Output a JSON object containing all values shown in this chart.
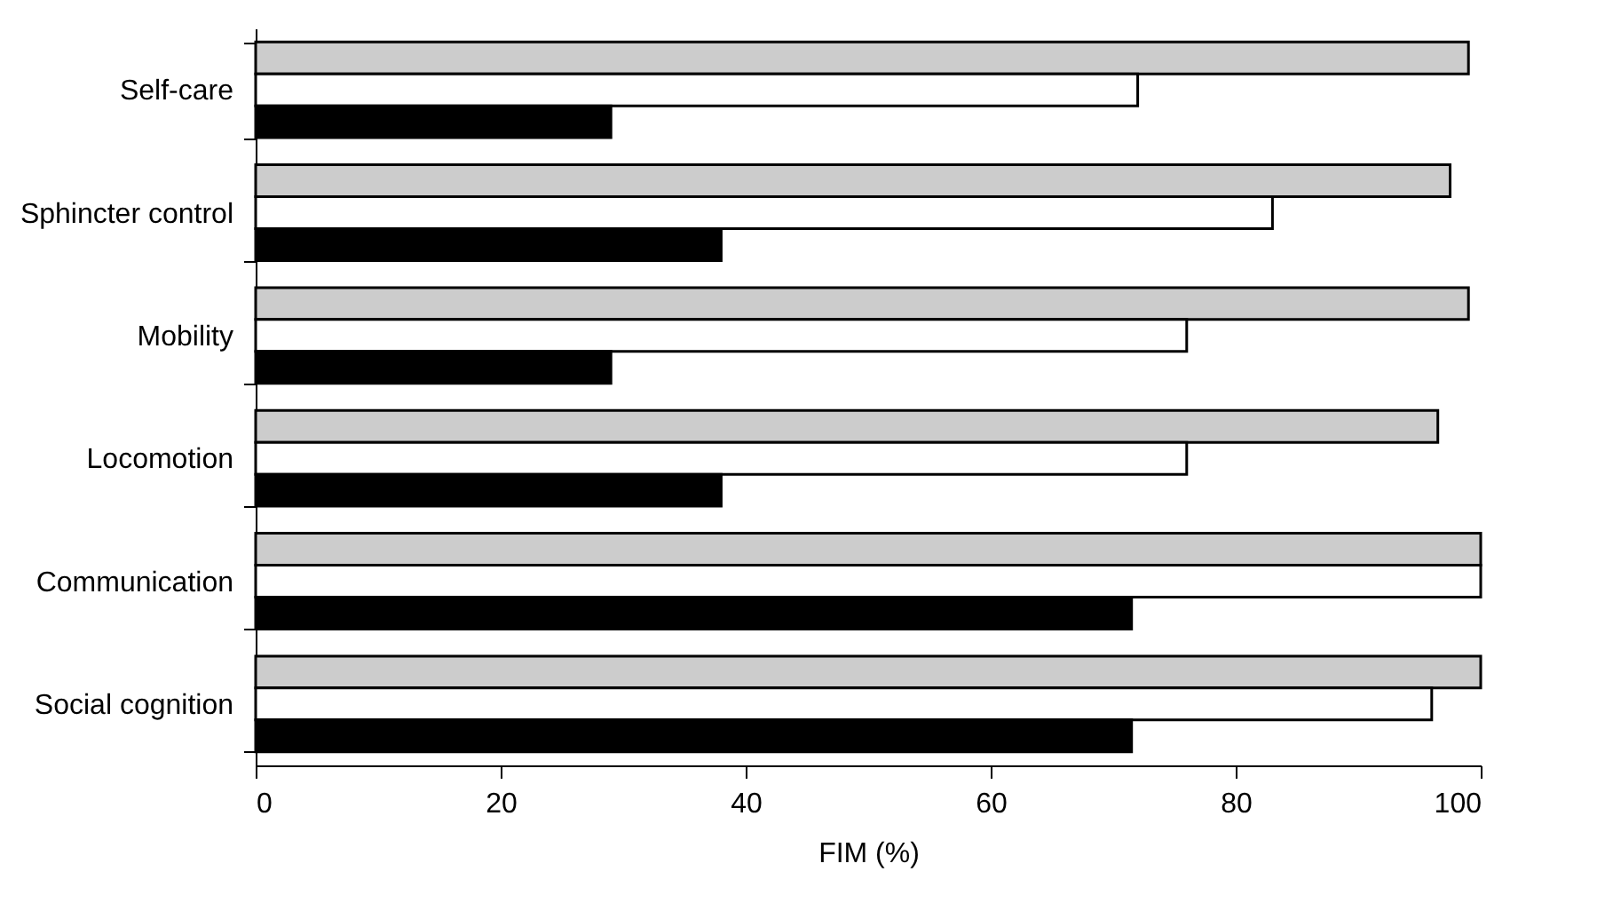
{
  "chart_data": {
    "type": "bar",
    "orientation": "horizontal",
    "xlabel": "FIM (%)",
    "categories": [
      "Self-care",
      "Sphincter control",
      "Mobility",
      "Locomotion",
      "Communication",
      "Social cognition"
    ],
    "series": [
      {
        "color": "#cccccc",
        "values": [
          99,
          97.5,
          99,
          96.5,
          100,
          100
        ]
      },
      {
        "color": "#ffffff",
        "values": [
          72,
          83,
          76,
          76,
          100,
          96
        ]
      },
      {
        "color": "#000000",
        "values": [
          29,
          38,
          29,
          38,
          71.5,
          71.5
        ]
      }
    ],
    "xlim": [
      0,
      100
    ],
    "xticks": [
      0,
      20,
      40,
      60,
      80,
      100
    ],
    "grid": false
  }
}
